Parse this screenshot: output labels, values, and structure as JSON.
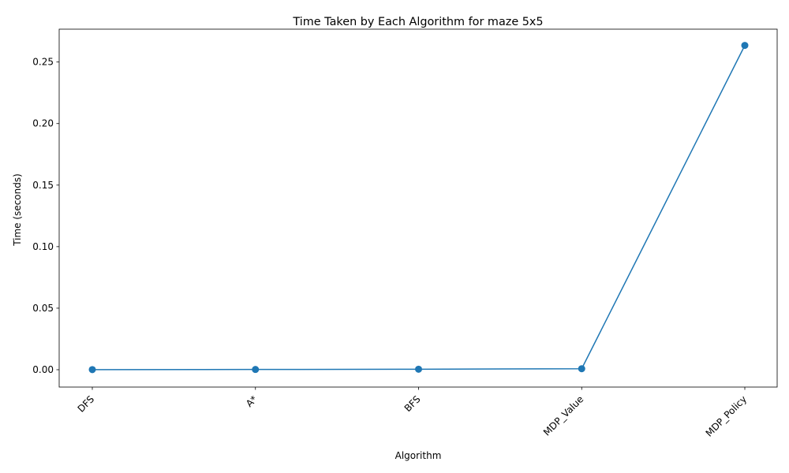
{
  "chart_data": {
    "type": "line",
    "title": "Time Taken by Each Algorithm for maze 5x5",
    "xlabel": "Algorithm",
    "ylabel": "Time (seconds)",
    "categories": [
      "DFS",
      "A*",
      "BFS",
      "MDP_Value",
      "MDP_Policy"
    ],
    "series": [
      {
        "values": [
          0.0001,
          0.0002,
          0.0004,
          0.0008,
          0.2635
        ],
        "color": "#1f77b4",
        "marker": "circle"
      }
    ],
    "yticks": [
      "0.00",
      "0.05",
      "0.10",
      "0.15",
      "0.20",
      "0.25"
    ],
    "ylim": [
      -0.0141,
      0.2767
    ],
    "grid": false,
    "legend": "none",
    "xtick_rotation": "45 degrees"
  }
}
